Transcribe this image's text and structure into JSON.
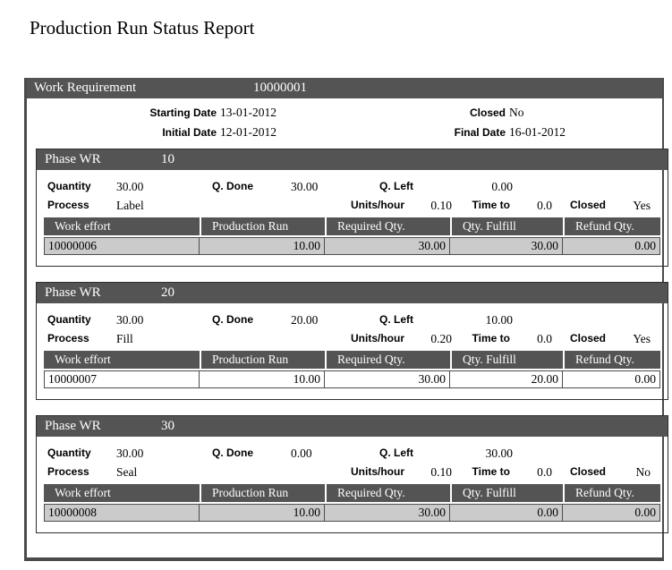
{
  "title": "Production Run Status Report",
  "colors": {
    "bar_background": "#545454",
    "bar_text": "#ffffff",
    "row_shade": "#cbcbcb",
    "frame_border": "#4a4a4a",
    "line_border": "#4d4d4d"
  },
  "work_requirement": {
    "bar_label": "Work Requirement",
    "id": "10000001",
    "starting_date_label": "Starting Date",
    "starting_date": "13-01-2012",
    "closed_label": "Closed",
    "closed": "No",
    "initial_date_label": "Initial Date",
    "initial_date": "12-01-2012",
    "final_date_label": "Final Date",
    "final_date": "16-01-2012"
  },
  "phase_bar_label": "Phase WR",
  "field_labels": {
    "quantity": "Quantity",
    "q_done": "Q. Done",
    "q_left": "Q. Left",
    "process": "Process",
    "units_hour": "Units/hour",
    "time_to": "Time to",
    "closed": "Closed"
  },
  "table_headers": [
    "Work effort",
    "Production Run",
    "Required Qty.",
    "Qty. Fulfill",
    "Refund Qty."
  ],
  "phases": [
    {
      "number": "10",
      "quantity": "30.00",
      "q_done": "30.00",
      "q_left": "0.00",
      "process": "Label",
      "units_hour": "0.10",
      "time_to": "0.0",
      "closed": "Yes",
      "row": {
        "work_effort": "10000006",
        "production_run": "10.00",
        "required_qty": "30.00",
        "qty_fulfill": "30.00",
        "refund_qty": "0.00",
        "shaded": true
      }
    },
    {
      "number": "20",
      "quantity": "30.00",
      "q_done": "20.00",
      "q_left": "10.00",
      "process": "Fill",
      "units_hour": "0.20",
      "time_to": "0.0",
      "closed": "Yes",
      "row": {
        "work_effort": "10000007",
        "production_run": "10.00",
        "required_qty": "30.00",
        "qty_fulfill": "20.00",
        "refund_qty": "0.00",
        "shaded": false
      }
    },
    {
      "number": "30",
      "quantity": "30.00",
      "q_done": "0.00",
      "q_left": "30.00",
      "process": "Seal",
      "units_hour": "0.10",
      "time_to": "0.0",
      "closed": "No",
      "row": {
        "work_effort": "10000008",
        "production_run": "10.00",
        "required_qty": "30.00",
        "qty_fulfill": "0.00",
        "refund_qty": "0.00",
        "shaded": true
      }
    }
  ]
}
